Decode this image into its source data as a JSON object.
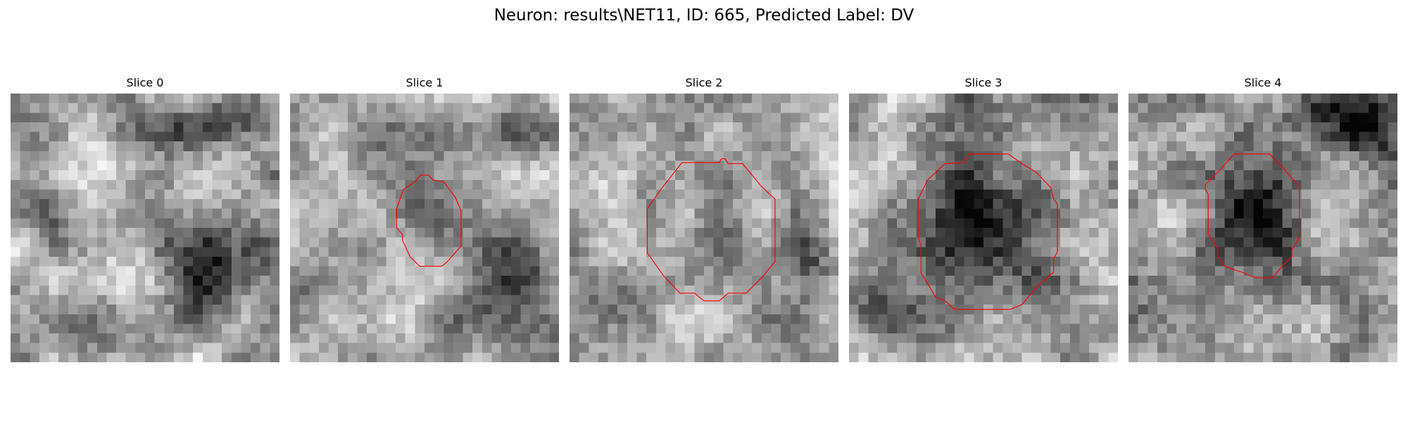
{
  "figure": {
    "title": "Neuron: results\\NET11, ID: 665, Predicted Label: DV"
  },
  "colors": {
    "contour": "#ff0000",
    "colormap": "gray"
  },
  "slices": [
    {
      "title": "Slice 0",
      "has_contour": false
    },
    {
      "title": "Slice 1",
      "has_contour": true
    },
    {
      "title": "Slice 2",
      "has_contour": true
    },
    {
      "title": "Slice 3",
      "has_contour": true
    },
    {
      "title": "Slice 4",
      "has_contour": true
    }
  ]
}
